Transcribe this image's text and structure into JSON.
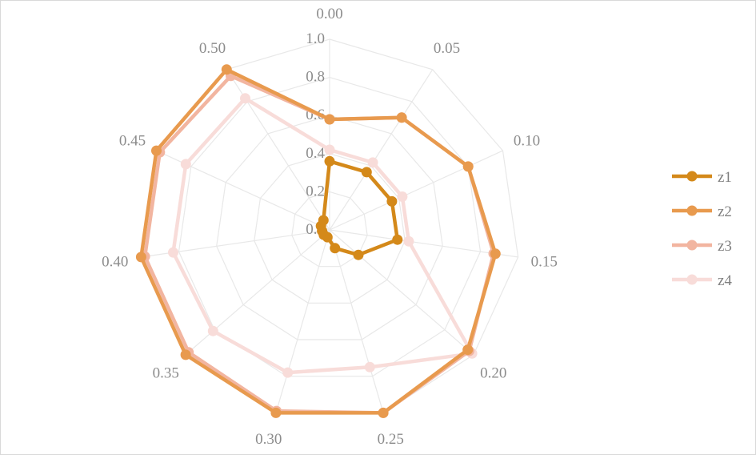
{
  "chart_data": {
    "type": "radar",
    "title": "",
    "categories": [
      "0.00",
      "0.05",
      "0.10",
      "0.15",
      "0.20",
      "0.25",
      "0.30",
      "0.35",
      "0.40",
      "0.45",
      "0.50"
    ],
    "rlim": [
      0,
      1.0
    ],
    "ticks": [
      "0.0",
      "0.2",
      "0.4",
      "0.6",
      "0.8",
      "1.0"
    ],
    "tick_values": [
      0,
      0.2,
      0.4,
      0.6,
      0.8,
      1.0
    ],
    "grid": true,
    "legend_position": "right",
    "series": [
      {
        "name": "z1",
        "color": "#d4891a",
        "values": [
          0.36,
          0.36,
          0.36,
          0.36,
          0.2,
          0.1,
          0.04,
          0.04,
          0.04,
          0.05,
          0.06
        ]
      },
      {
        "name": "z2",
        "color": "#e89a4e",
        "values": [
          0.58,
          0.7,
          0.8,
          0.88,
          0.96,
          1.0,
          1.0,
          1.0,
          1.0,
          1.0,
          1.0
        ]
      },
      {
        "name": "z3",
        "color": "#f2b5a0",
        "values": [
          0.58,
          0.7,
          0.8,
          0.87,
          0.97,
          1.0,
          0.99,
          0.98,
          0.98,
          0.98,
          0.96
        ]
      },
      {
        "name": "z4",
        "color": "#f8dcd9",
        "values": [
          0.42,
          0.42,
          0.42,
          0.42,
          0.99,
          0.75,
          0.78,
          0.81,
          0.83,
          0.83,
          0.82
        ]
      }
    ]
  }
}
